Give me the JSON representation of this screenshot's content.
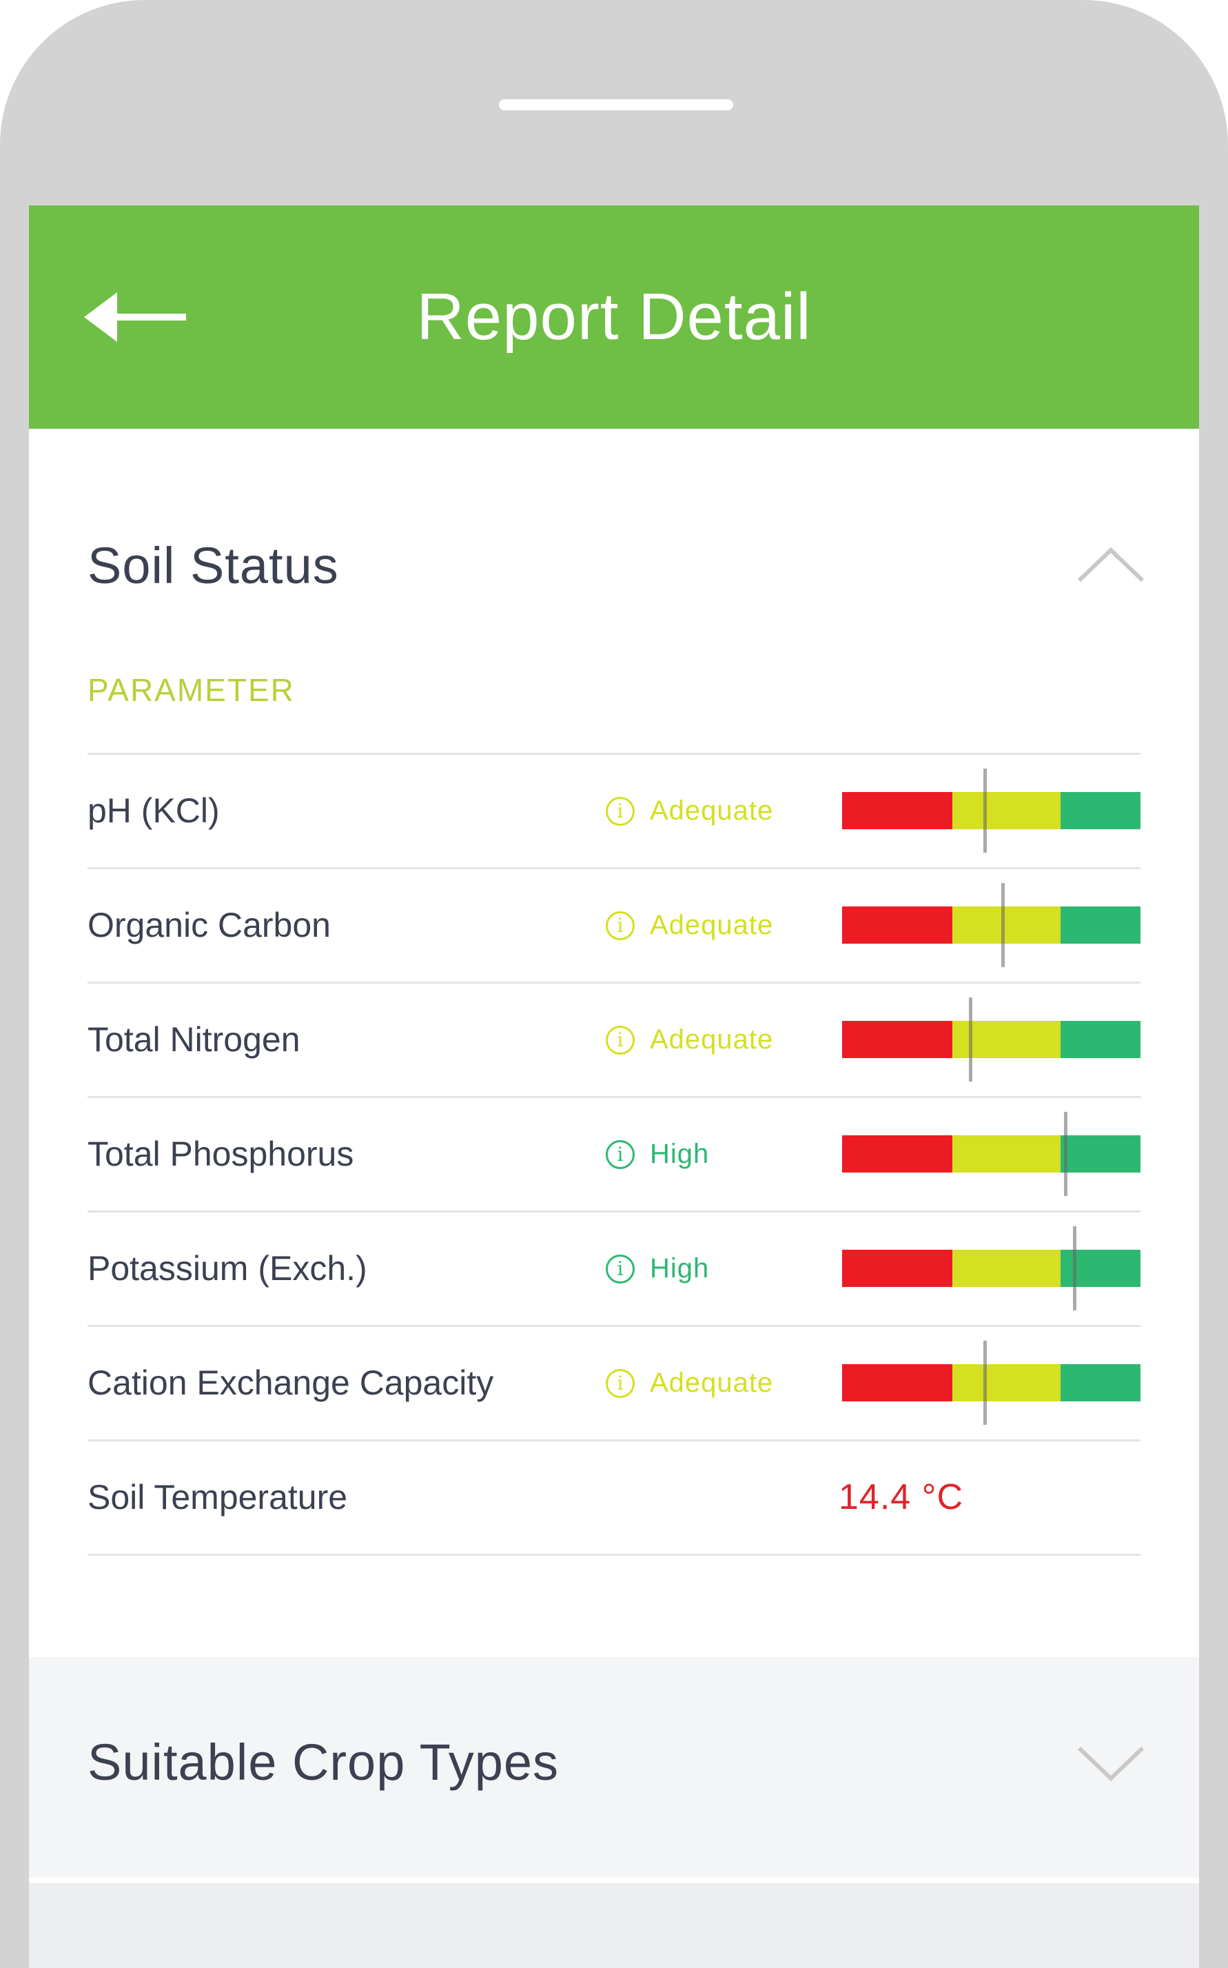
{
  "appbar": {
    "title": "Report Detail",
    "back_icon": "arrow-left-icon"
  },
  "soil_status": {
    "title": "Soil Status",
    "expanded": true,
    "column_header": "PARAMETER",
    "parameters": [
      {
        "label": "pH (KCl)",
        "status": "Adequate",
        "status_color": "#d4e021",
        "level": 0.48
      },
      {
        "label": "Organic Carbon",
        "status": "Adequate",
        "status_color": "#d4e021",
        "level": 0.54
      },
      {
        "label": "Total Nitrogen",
        "status": "Adequate",
        "status_color": "#d4e021",
        "level": 0.43
      },
      {
        "label": "Total Phosphorus",
        "status": "High",
        "status_color": "#2db872",
        "level": 0.75
      },
      {
        "label": "Potassium (Exch.)",
        "status": "High",
        "status_color": "#2db872",
        "level": 0.78
      },
      {
        "label": "Cation Exchange Capacity",
        "status": "Adequate",
        "status_color": "#d4e021",
        "level": 0.48
      }
    ],
    "temperature": {
      "label": "Soil Temperature",
      "value": "14.4 °C"
    }
  },
  "crop_types": {
    "title": "Suitable Crop Types",
    "expanded": false
  },
  "colors": {
    "appbar": "#6fbe45",
    "gauge_low": "#ed1c24",
    "gauge_mid": "#d4e021",
    "gauge_high": "#2db872",
    "temperature": "#e0232b"
  }
}
